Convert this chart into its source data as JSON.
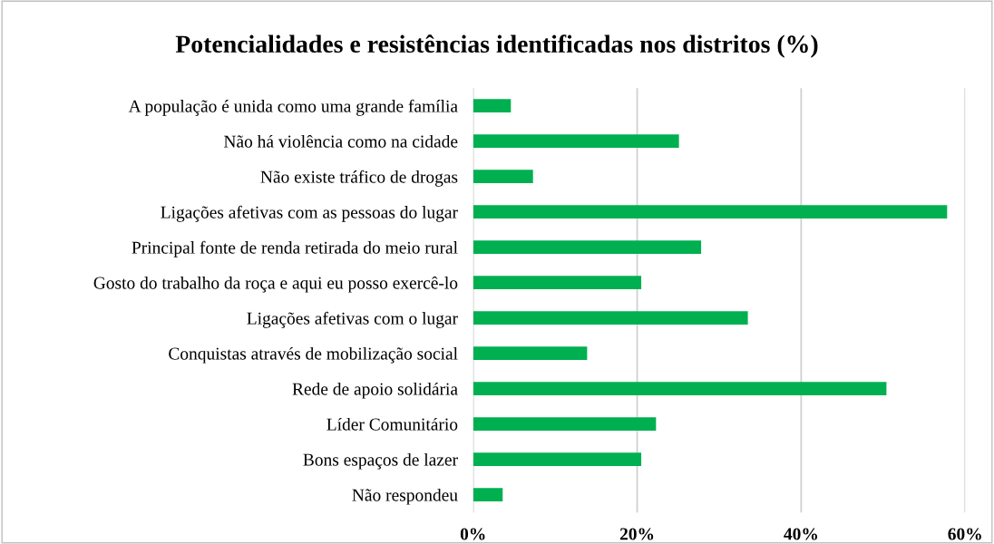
{
  "chart_data": {
    "type": "bar",
    "orientation": "horizontal",
    "title": "Potencialidades e resistências identificadas nos distritos (%)",
    "categories": [
      "A população é unida como uma grande família",
      "Não há violência como na cidade",
      "Não existe tráfico de drogas",
      "Ligações afetivas com as pessoas do lugar",
      "Principal fonte de renda retirada do meio rural",
      "Gosto do trabalho da roça e aqui eu posso exercê-lo",
      "Ligações afetivas com o lugar",
      "Conquistas através de mobilização social",
      "Rede de apoio solidária",
      "Líder Comunitário",
      "Bons espaços de lazer",
      "Não respondeu"
    ],
    "values": [
      4.6,
      25.1,
      7.3,
      57.8,
      27.8,
      20.5,
      33.5,
      13.9,
      50.4,
      22.3,
      20.5,
      3.6
    ],
    "color": "#00b050",
    "xlim": [
      0,
      60
    ],
    "xticks": [
      {
        "value": 0,
        "label": "0%"
      },
      {
        "value": 20,
        "label": "20%"
      },
      {
        "value": 40,
        "label": "40%"
      },
      {
        "value": 60,
        "label": "60%"
      }
    ],
    "grid": "x",
    "legend": false
  }
}
